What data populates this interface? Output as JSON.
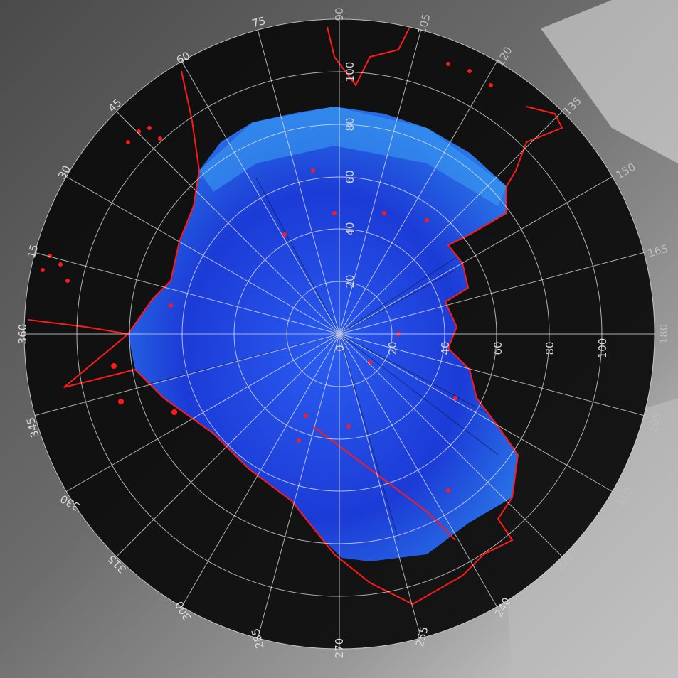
{
  "map": {
    "range_ring_labels": [
      "20",
      "40",
      "60",
      "80",
      "100"
    ],
    "axis_zero_label": "0",
    "azimuth_labels": [
      "90",
      "105",
      "120",
      "135",
      "150",
      "165",
      "180",
      "195",
      "210",
      "225",
      "240",
      "255",
      "270",
      "285",
      "300",
      "315",
      "330",
      "345",
      "360",
      "15",
      "30",
      "45",
      "60",
      "75"
    ],
    "colors": {
      "background_map": "#7a7a7a",
      "disc": "#0d0d0d",
      "coverage_dark": "#1c3bd6",
      "coverage_light": "#3aa0f2",
      "boundary": "#ff1a1a",
      "grid": "#e6e6e6"
    },
    "icons": [
      "compass-grid-icon",
      "coverage-area-icon",
      "boundary-line-icon"
    ]
  }
}
